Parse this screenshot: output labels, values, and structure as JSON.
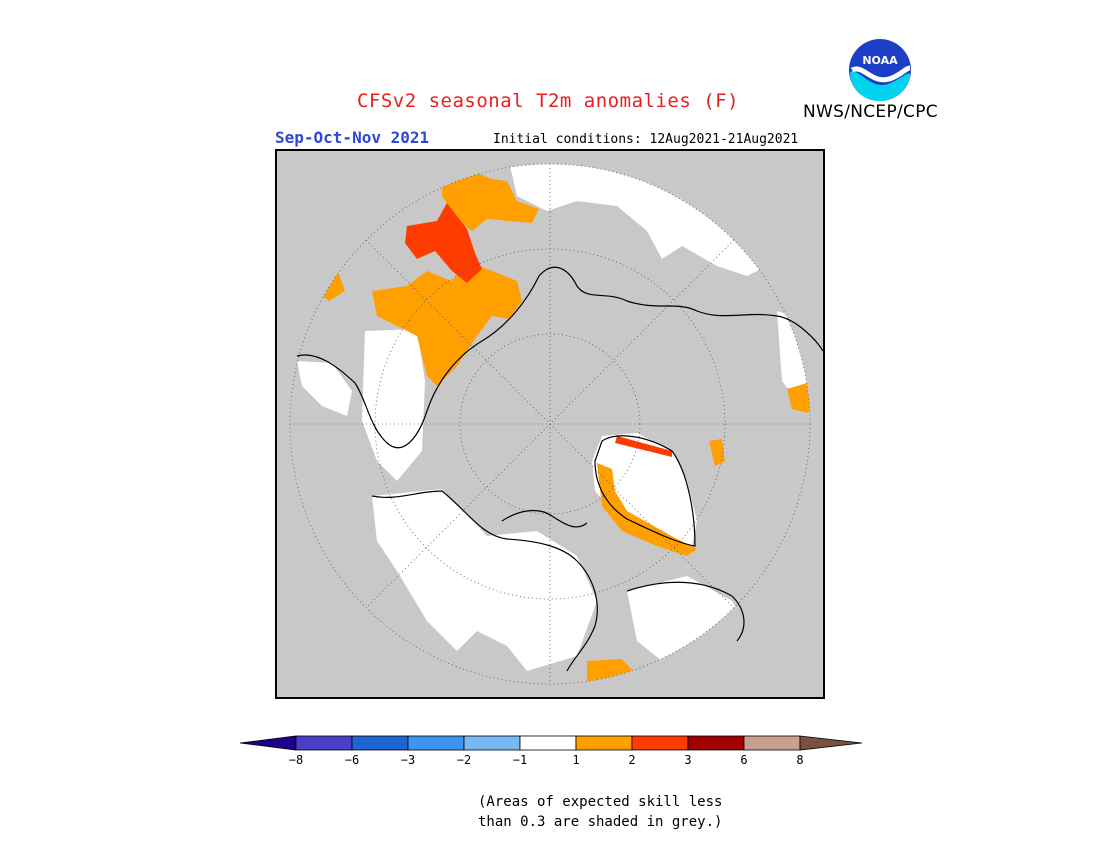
{
  "header": {
    "title": "CFSv2 seasonal T2m anomalies (F)",
    "agency": "NWS/NCEP/CPC",
    "logo_text": "NOAA",
    "season": "Sep-Oct-Nov 2021",
    "initial_conditions": "Initial conditions: 12Aug2021-21Aug2021"
  },
  "colors": {
    "skill_grey": "#c8c8c8",
    "neutral": "#ffffff",
    "coast": "#000000"
  },
  "legend": {
    "bins": [
      {
        "color": "#1c0087",
        "role": "arrow-left"
      },
      {
        "color": "#4a3ecb"
      },
      {
        "color": "#1e64d2"
      },
      {
        "color": "#3c96f0"
      },
      {
        "color": "#78b9f5"
      },
      {
        "color": "#ffffff"
      },
      {
        "color": "#ffa000"
      },
      {
        "color": "#ff3c00"
      },
      {
        "color": "#a00000"
      },
      {
        "color": "#c8a090"
      },
      {
        "color": "#7a5040",
        "role": "arrow-right"
      }
    ],
    "labels": [
      "−8",
      "−6",
      "−3",
      "−2",
      "−1",
      "1",
      "2",
      "3",
      "6",
      "8"
    ]
  },
  "note": {
    "line1": "(Areas of expected skill less",
    "line2": "than 0.3 are shaded in grey.)"
  }
}
